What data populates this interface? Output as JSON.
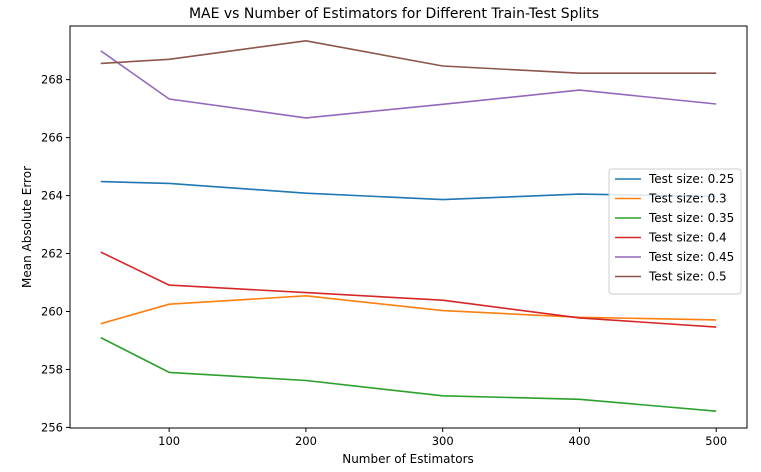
{
  "chart_data": {
    "type": "line",
    "title": "MAE vs Number of Estimators for Different Train-Test Splits",
    "xlabel": "Number of Estimators",
    "ylabel": "Mean Absolute Error",
    "x": [
      50,
      100,
      200,
      300,
      400,
      500
    ],
    "xticks": [
      100,
      200,
      300,
      400,
      500
    ],
    "yticks": [
      256,
      258,
      260,
      262,
      264,
      266,
      268
    ],
    "xlim": [
      27.5,
      522.5
    ],
    "ylim": [
      255.98,
      269.85
    ],
    "grid": false,
    "legend_position": "center-right",
    "series": [
      {
        "name": "Test size: 0.25",
        "color": "#1f77b4",
        "values": [
          264.48,
          264.42,
          264.08,
          263.86,
          264.05,
          263.97
        ]
      },
      {
        "name": "Test size: 0.3",
        "color": "#ff7f0e",
        "values": [
          259.58,
          260.25,
          260.54,
          260.03,
          259.8,
          259.71
        ]
      },
      {
        "name": "Test size: 0.35",
        "color": "#2ca02c",
        "values": [
          259.1,
          257.9,
          257.62,
          257.09,
          256.97,
          256.56
        ]
      },
      {
        "name": "Test size: 0.4",
        "color": "#d62728",
        "values": [
          262.05,
          260.91,
          260.65,
          260.39,
          259.78,
          259.46
        ]
      },
      {
        "name": "Test size: 0.45",
        "color": "#9467bd",
        "values": [
          268.99,
          267.33,
          266.68,
          267.15,
          267.64,
          267.16
        ]
      },
      {
        "name": "Test size: 0.5",
        "color": "#8c564b",
        "values": [
          268.56,
          268.7,
          269.34,
          268.47,
          268.22,
          268.22
        ]
      }
    ]
  }
}
